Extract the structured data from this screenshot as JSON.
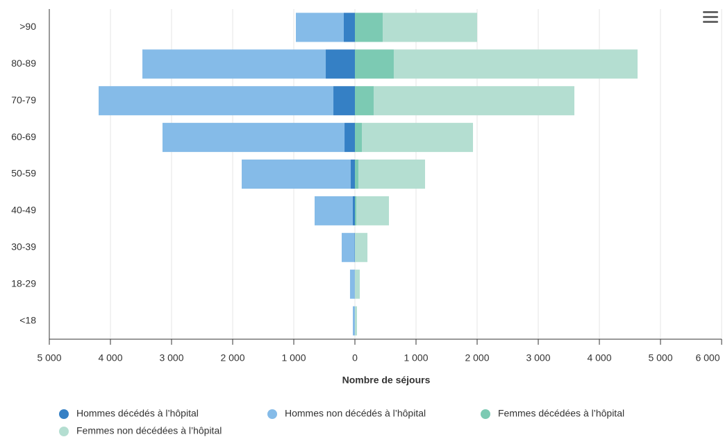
{
  "chart_data": {
    "type": "bar",
    "orientation": "horizontal",
    "stacking": true,
    "x_label": "Nombre de séjours",
    "categories": [
      ">90",
      "80-89",
      "70-79",
      "60-69",
      "50-59",
      "40-49",
      "30-39",
      "18-29",
      "<18"
    ],
    "series": [
      {
        "name": "Hommes décédés à l’hôpital",
        "color": "#3580c5",
        "values": [
          -182,
          -477,
          -352,
          -170,
          -68,
          -34,
          -5,
          -2,
          -1
        ]
      },
      {
        "name": "Hommes non décédés à l’hôpital",
        "color": "#85bbe8",
        "values": [
          -784,
          -3000,
          -3841,
          -2978,
          -1784,
          -625,
          -211,
          -78,
          -33
        ]
      },
      {
        "name": "Femmes décédées à l’hôpital",
        "color": "#7ccab3",
        "values": [
          455,
          636,
          307,
          114,
          57,
          23,
          3,
          1,
          0
        ]
      },
      {
        "name": "Femmes non décédées à l’hôpital",
        "color": "#b4ded1",
        "values": [
          1545,
          3989,
          3284,
          1818,
          1091,
          534,
          202,
          79,
          34
        ]
      }
    ],
    "xlim": [
      -5000,
      6000
    ],
    "xticks": [
      {
        "value": -5000,
        "label": "5 000"
      },
      {
        "value": -4000,
        "label": "4 000"
      },
      {
        "value": -3000,
        "label": "3 000"
      },
      {
        "value": -2000,
        "label": "2 000"
      },
      {
        "value": -1000,
        "label": "1 000"
      },
      0,
      {
        "value": 1000,
        "label": "1 000"
      },
      {
        "value": 2000,
        "label": "2 000"
      },
      {
        "value": 3000,
        "label": "3 000"
      },
      {
        "value": 4000,
        "label": "4 000"
      },
      {
        "value": 5000,
        "label": "5 000"
      },
      {
        "value": 6000,
        "label": "6 000"
      }
    ],
    "grid": true
  }
}
